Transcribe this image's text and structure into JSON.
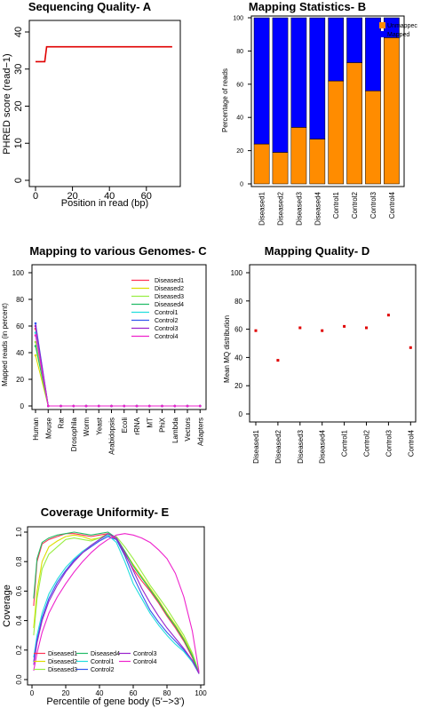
{
  "chart_data": [
    {
      "panel": "A",
      "type": "line",
      "title": "Sequencing Quality- A",
      "xlabel": "Position in read (bp)",
      "ylabel": "PHRED score (read−1)",
      "xlim": [
        0,
        75
      ],
      "ylim": [
        0,
        40
      ],
      "xticks": [
        "0",
        "20",
        "40",
        "60"
      ],
      "yticks": [
        "0",
        "10",
        "20",
        "30",
        "40"
      ],
      "series": [
        {
          "color": "#e00000",
          "points": [
            [
              0,
              32
            ],
            [
              5,
              32
            ],
            [
              6,
              36
            ],
            [
              74,
              36
            ]
          ]
        }
      ]
    },
    {
      "panel": "B",
      "type": "bar",
      "stacked": true,
      "title": "Mapping Statistics- B",
      "ylabel": "Percentage of reads",
      "ylim": [
        0,
        100
      ],
      "yticks": [
        "0",
        "20",
        "40",
        "60",
        "80",
        "100"
      ],
      "categories": [
        "Diseased1",
        "Diseased2",
        "Diseased3",
        "Diseased4",
        "Control1",
        "Control2",
        "Control3",
        "Control4"
      ],
      "series": [
        {
          "name": "Unmappec",
          "color": "#ff8c00",
          "values": [
            24,
            19,
            34,
            27,
            62,
            73,
            56,
            88
          ]
        },
        {
          "name": "Mapped",
          "color": "#0000ff",
          "values": [
            76,
            81,
            66,
            73,
            38,
            27,
            44,
            12
          ]
        }
      ],
      "legend": "top-right"
    },
    {
      "panel": "C",
      "type": "line",
      "title": "Mapping to various Genomes- C",
      "ylabel": "Mapped reads (in percent)",
      "ylim": [
        0,
        100
      ],
      "yticks": [
        "0",
        "20",
        "40",
        "60",
        "80",
        "100"
      ],
      "categories": [
        "Human",
        "Mouse",
        "Rat",
        "Drosophila",
        "Worm",
        "Yeast",
        "Arabidopsis",
        "Ecoli",
        "rRNA",
        "MT",
        "PhiX",
        "Lambda",
        "Vectors",
        "Adapters"
      ],
      "series": [
        {
          "name": "Diseased1",
          "color": "#ff3355",
          "values": [
            58,
            0,
            0,
            0,
            0,
            0,
            0,
            0,
            0,
            0,
            0,
            0,
            0,
            0
          ]
        },
        {
          "name": "Diseased2",
          "color": "#dddd00",
          "values": [
            38,
            0,
            0,
            0,
            0,
            0,
            0,
            0,
            0,
            0,
            0,
            0,
            0,
            0
          ]
        },
        {
          "name": "Diseased3",
          "color": "#99ee44",
          "values": [
            48,
            0,
            0,
            0,
            0,
            0,
            0,
            0,
            0,
            0,
            0,
            0,
            0,
            0
          ]
        },
        {
          "name": "Diseased4",
          "color": "#22bb66",
          "values": [
            45,
            0,
            0,
            0,
            0,
            0,
            0,
            0,
            0,
            0,
            0,
            0,
            0,
            0
          ]
        },
        {
          "name": "Control1",
          "color": "#22dddd",
          "values": [
            55,
            0,
            0,
            0,
            0,
            0,
            0,
            0,
            0,
            0,
            0,
            0,
            0,
            0
          ]
        },
        {
          "name": "Control2",
          "color": "#3355ee",
          "values": [
            62,
            0,
            0,
            0,
            0,
            0,
            0,
            0,
            0,
            0,
            0,
            0,
            0,
            0
          ]
        },
        {
          "name": "Control3",
          "color": "#9922cc",
          "values": [
            60,
            0,
            0,
            0,
            0,
            0,
            0,
            0,
            0,
            0,
            0,
            0,
            0,
            0
          ]
        },
        {
          "name": "Control4",
          "color": "#ee22cc",
          "values": [
            53,
            0,
            0,
            0,
            0,
            0,
            0,
            0,
            0,
            0,
            0,
            0,
            0,
            0
          ]
        }
      ],
      "legend": "top-right"
    },
    {
      "panel": "D",
      "type": "scatter",
      "title": "Mapping Quality- D",
      "ylabel": "Mean MQ distribution",
      "ylim": [
        0,
        100
      ],
      "yticks": [
        "0",
        "20",
        "40",
        "60",
        "80",
        "100"
      ],
      "categories": [
        "Diseased1",
        "Diseased2",
        "Diseased3",
        "Diseased4",
        "Control1",
        "Control2",
        "Control3",
        "Control4"
      ],
      "values": [
        59,
        38,
        61,
        59,
        62,
        61,
        70,
        47
      ],
      "color": "#e00000"
    },
    {
      "panel": "E",
      "type": "line",
      "title": "Coverage Uniformity- E",
      "xlabel": "Percentile of gene body (5'−>3')",
      "ylabel": "Coverage",
      "xlim": [
        0,
        100
      ],
      "ylim": [
        0,
        1
      ],
      "xticks": [
        "0",
        "20",
        "40",
        "60",
        "80",
        "100"
      ],
      "yticks": [
        "0.0",
        "0.2",
        "0.4",
        "0.6",
        "0.8",
        "1.0"
      ],
      "series": [
        {
          "name": "Diseased1",
          "color": "#ff3355",
          "points": [
            [
              1,
              0.5
            ],
            [
              3,
              0.8
            ],
            [
              6,
              0.92
            ],
            [
              10,
              0.95
            ],
            [
              15,
              0.97
            ],
            [
              20,
              0.99
            ],
            [
              25,
              0.99
            ],
            [
              30,
              0.98
            ],
            [
              35,
              0.97
            ],
            [
              40,
              0.98
            ],
            [
              45,
              0.99
            ],
            [
              50,
              0.95
            ],
            [
              55,
              0.85
            ],
            [
              60,
              0.75
            ],
            [
              65,
              0.67
            ],
            [
              70,
              0.6
            ],
            [
              75,
              0.52
            ],
            [
              80,
              0.43
            ],
            [
              85,
              0.35
            ],
            [
              90,
              0.26
            ],
            [
              95,
              0.15
            ],
            [
              99,
              0.04
            ]
          ]
        },
        {
          "name": "Diseased2",
          "color": "#dddd00",
          "points": [
            [
              1,
              0.35
            ],
            [
              3,
              0.6
            ],
            [
              6,
              0.8
            ],
            [
              10,
              0.9
            ],
            [
              15,
              0.94
            ],
            [
              20,
              0.97
            ],
            [
              25,
              0.98
            ],
            [
              30,
              0.97
            ],
            [
              35,
              0.95
            ],
            [
              40,
              0.96
            ],
            [
              45,
              0.99
            ],
            [
              50,
              0.96
            ],
            [
              55,
              0.87
            ],
            [
              60,
              0.78
            ],
            [
              65,
              0.7
            ],
            [
              70,
              0.62
            ],
            [
              75,
              0.54
            ],
            [
              80,
              0.45
            ],
            [
              85,
              0.37
            ],
            [
              90,
              0.28
            ],
            [
              95,
              0.17
            ],
            [
              99,
              0.05
            ]
          ]
        },
        {
          "name": "Diseased3",
          "color": "#99ee44",
          "points": [
            [
              1,
              0.3
            ],
            [
              3,
              0.55
            ],
            [
              6,
              0.75
            ],
            [
              10,
              0.85
            ],
            [
              15,
              0.9
            ],
            [
              20,
              0.95
            ],
            [
              25,
              0.96
            ],
            [
              30,
              0.95
            ],
            [
              35,
              0.94
            ],
            [
              40,
              0.96
            ],
            [
              45,
              0.98
            ],
            [
              50,
              0.97
            ],
            [
              55,
              0.9
            ],
            [
              60,
              0.82
            ],
            [
              65,
              0.73
            ],
            [
              70,
              0.64
            ],
            [
              75,
              0.56
            ],
            [
              80,
              0.48
            ],
            [
              85,
              0.39
            ],
            [
              90,
              0.3
            ],
            [
              95,
              0.18
            ],
            [
              99,
              0.05
            ]
          ]
        },
        {
          "name": "Diseased4",
          "color": "#22bb66",
          "points": [
            [
              1,
              0.55
            ],
            [
              3,
              0.82
            ],
            [
              6,
              0.93
            ],
            [
              10,
              0.96
            ],
            [
              15,
              0.98
            ],
            [
              20,
              0.99
            ],
            [
              25,
              1.0
            ],
            [
              30,
              0.99
            ],
            [
              35,
              0.98
            ],
            [
              40,
              0.99
            ],
            [
              45,
              1.0
            ],
            [
              50,
              0.96
            ],
            [
              55,
              0.87
            ],
            [
              60,
              0.77
            ],
            [
              65,
              0.69
            ],
            [
              70,
              0.61
            ],
            [
              75,
              0.53
            ],
            [
              80,
              0.44
            ],
            [
              85,
              0.36
            ],
            [
              90,
              0.27
            ],
            [
              95,
              0.16
            ],
            [
              99,
              0.04
            ]
          ]
        },
        {
          "name": "Control1",
          "color": "#22dddd",
          "points": [
            [
              1,
              0.15
            ],
            [
              3,
              0.3
            ],
            [
              6,
              0.45
            ],
            [
              10,
              0.58
            ],
            [
              15,
              0.68
            ],
            [
              20,
              0.76
            ],
            [
              25,
              0.82
            ],
            [
              30,
              0.87
            ],
            [
              35,
              0.91
            ],
            [
              40,
              0.95
            ],
            [
              45,
              0.98
            ],
            [
              50,
              0.93
            ],
            [
              55,
              0.8
            ],
            [
              60,
              0.65
            ],
            [
              65,
              0.55
            ],
            [
              70,
              0.45
            ],
            [
              75,
              0.37
            ],
            [
              80,
              0.3
            ],
            [
              85,
              0.24
            ],
            [
              90,
              0.19
            ],
            [
              95,
              0.12
            ],
            [
              99,
              0.04
            ]
          ]
        },
        {
          "name": "Control2",
          "color": "#3355ee",
          "points": [
            [
              1,
              0.12
            ],
            [
              3,
              0.27
            ],
            [
              6,
              0.42
            ],
            [
              10,
              0.55
            ],
            [
              15,
              0.66
            ],
            [
              20,
              0.74
            ],
            [
              25,
              0.81
            ],
            [
              30,
              0.86
            ],
            [
              35,
              0.9
            ],
            [
              40,
              0.94
            ],
            [
              45,
              0.97
            ],
            [
              50,
              0.95
            ],
            [
              55,
              0.84
            ],
            [
              60,
              0.7
            ],
            [
              65,
              0.58
            ],
            [
              70,
              0.47
            ],
            [
              75,
              0.39
            ],
            [
              80,
              0.32
            ],
            [
              85,
              0.26
            ],
            [
              90,
              0.2
            ],
            [
              95,
              0.13
            ],
            [
              99,
              0.04
            ]
          ]
        },
        {
          "name": "Control3",
          "color": "#9922cc",
          "points": [
            [
              1,
              0.1
            ],
            [
              3,
              0.25
            ],
            [
              6,
              0.4
            ],
            [
              10,
              0.53
            ],
            [
              15,
              0.64
            ],
            [
              20,
              0.73
            ],
            [
              25,
              0.8
            ],
            [
              30,
              0.86
            ],
            [
              35,
              0.91
            ],
            [
              40,
              0.95
            ],
            [
              45,
              0.99
            ],
            [
              50,
              0.96
            ],
            [
              55,
              0.86
            ],
            [
              60,
              0.74
            ],
            [
              65,
              0.62
            ],
            [
              70,
              0.52
            ],
            [
              75,
              0.43
            ],
            [
              80,
              0.35
            ],
            [
              85,
              0.28
            ],
            [
              90,
              0.21
            ],
            [
              95,
              0.13
            ],
            [
              99,
              0.04
            ]
          ]
        },
        {
          "name": "Control4",
          "color": "#ee22cc",
          "points": [
            [
              1,
              0.06
            ],
            [
              3,
              0.18
            ],
            [
              6,
              0.32
            ],
            [
              10,
              0.45
            ],
            [
              15,
              0.56
            ],
            [
              20,
              0.65
            ],
            [
              25,
              0.73
            ],
            [
              30,
              0.8
            ],
            [
              35,
              0.86
            ],
            [
              40,
              0.91
            ],
            [
              45,
              0.95
            ],
            [
              50,
              0.98
            ],
            [
              55,
              0.99
            ],
            [
              60,
              0.98
            ],
            [
              65,
              0.96
            ],
            [
              70,
              0.93
            ],
            [
              75,
              0.88
            ],
            [
              80,
              0.82
            ],
            [
              85,
              0.72
            ],
            [
              90,
              0.56
            ],
            [
              95,
              0.33
            ],
            [
              99,
              0.05
            ]
          ]
        }
      ],
      "legend": "bottom-left"
    }
  ]
}
